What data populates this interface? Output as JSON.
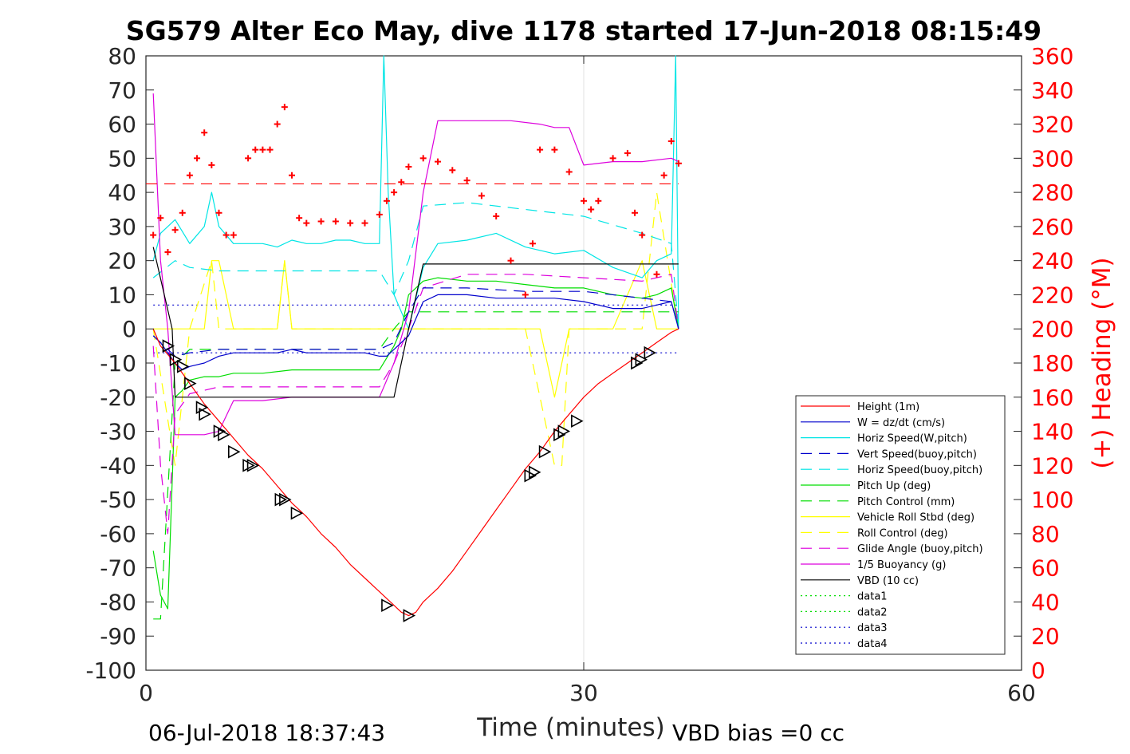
{
  "chart_data": {
    "type": "line",
    "title": "SG579 Alter Eco May, dive 1178 started 17-Jun-2018 08:15:49",
    "xlabel": "Time (minutes)",
    "ylabel_right": "(+) Heading (°M)",
    "footer_left": "06-Jul-2018 18:37:43",
    "footer_right": "VBD bias =0 cc",
    "xlim": [
      0,
      60
    ],
    "ylim": [
      -100,
      80
    ],
    "ylim_right": [
      0,
      360
    ],
    "x_ticks": [
      0,
      30,
      60
    ],
    "x_tick_labels": [
      "0",
      "30",
      "60"
    ],
    "y_ticks": [
      80,
      70,
      60,
      50,
      40,
      30,
      20,
      10,
      0,
      -10,
      -20,
      -30,
      -40,
      -50,
      -60,
      -70,
      -80,
      -90,
      -100
    ],
    "y_tick_labels": [
      "80",
      "70",
      "60",
      "50",
      "40",
      "30",
      "20",
      "10",
      "0",
      "-10",
      "-20",
      "-30",
      "-40",
      "-50",
      "-60",
      "-70",
      "-80",
      "-90",
      "-100"
    ],
    "y_right_ticks": [
      360,
      340,
      320,
      300,
      280,
      260,
      240,
      220,
      200,
      180,
      160,
      140,
      120,
      100,
      80,
      60,
      40,
      20,
      0
    ],
    "y_right_tick_labels": [
      "360",
      "340",
      "320",
      "300",
      "280",
      "260",
      "240",
      "220",
      "200",
      "180",
      "160",
      "140",
      "120",
      "100",
      "80",
      "60",
      "40",
      "20",
      "0"
    ],
    "grid_x": [
      30
    ],
    "legend_position": "bottom-right",
    "legend": [
      {
        "label": "Height (1m)",
        "color": "#ff0000",
        "dash": "solid"
      },
      {
        "label": "W = dz/dt (cm/s)",
        "color": "#0000cc",
        "dash": "solid"
      },
      {
        "label": "Horiz Speed(W,pitch)",
        "color": "#00e5e5",
        "dash": "solid"
      },
      {
        "label": "Vert Speed(buoy,pitch)",
        "color": "#0000cc",
        "dash": "dashed"
      },
      {
        "label": "Horiz Speed(buoy,pitch)",
        "color": "#00e5e5",
        "dash": "dashed"
      },
      {
        "label": "Pitch Up (deg)",
        "color": "#00dd00",
        "dash": "solid"
      },
      {
        "label": "Pitch Control (mm)",
        "color": "#00dd00",
        "dash": "dashed"
      },
      {
        "label": "Vehicle Roll Stbd (deg)",
        "color": "#ffff00",
        "dash": "solid"
      },
      {
        "label": "Roll Control (deg)",
        "color": "#ffff00",
        "dash": "dashed"
      },
      {
        "label": "Glide Angle (buoy,pitch)",
        "color": "#dd00dd",
        "dash": "dashed"
      },
      {
        "label": "1/5 Buoyancy (g)",
        "color": "#dd00dd",
        "dash": "solid"
      },
      {
        "label": "VBD (10 cc)",
        "color": "#000000",
        "dash": "solid"
      },
      {
        "label": "data1",
        "color": "#00dd00",
        "dash": "dotted"
      },
      {
        "label": "data2",
        "color": "#00dd00",
        "dash": "dotted"
      },
      {
        "label": "data3",
        "color": "#0000cc",
        "dash": "dotted"
      },
      {
        "label": "data4",
        "color": "#0000cc",
        "dash": "dotted"
      }
    ],
    "series": [
      {
        "key": "height",
        "x": [
          0.5,
          1,
          2,
          3,
          4,
          5,
          6,
          7,
          8,
          9,
          10,
          11,
          12,
          13,
          14,
          15,
          16,
          17,
          17.5,
          18,
          18.5,
          19,
          20,
          21,
          22,
          23,
          24,
          25,
          26,
          27,
          28,
          29,
          30,
          31,
          32,
          33,
          34,
          35,
          36,
          36.5
        ],
        "y": [
          0,
          -5,
          -10,
          -16,
          -22,
          -27,
          -32,
          -37,
          -41,
          -46,
          -51,
          -55,
          -60,
          -64,
          -69,
          -73,
          -77,
          -81,
          -83,
          -84,
          -83,
          -80,
          -76,
          -71,
          -65,
          -59,
          -53,
          -47,
          -41,
          -36,
          -30,
          -25,
          -20,
          -16,
          -13,
          -10,
          -7,
          -4,
          -1,
          0
        ]
      },
      {
        "key": "w",
        "x": [
          0.5,
          1,
          1.5,
          2,
          2.5,
          3,
          4,
          5,
          6,
          7,
          8,
          9,
          10,
          11,
          12,
          13,
          14,
          15,
          16,
          16.5,
          17,
          18,
          18.5,
          19,
          20,
          22,
          24,
          26,
          28,
          30,
          32,
          34,
          35,
          36,
          36.5
        ],
        "y": [
          -2,
          -4,
          -7,
          -10,
          -12,
          -11,
          -10,
          -8,
          -7,
          -7,
          -7,
          -7,
          -6,
          -7,
          -7,
          -7,
          -7,
          -7,
          -8,
          -8,
          -6,
          -2,
          3,
          8,
          10,
          10,
          9,
          9,
          9,
          8,
          6,
          6,
          7,
          8,
          0
        ]
      },
      {
        "key": "horiz_w",
        "x": [
          0.5,
          1,
          2,
          3,
          4,
          4.5,
          5,
          6,
          7,
          8,
          9,
          10,
          11,
          12,
          13,
          14,
          15,
          16,
          16.3,
          16.6,
          17,
          18,
          19,
          20,
          22,
          24,
          26,
          28,
          30,
          32,
          34,
          35,
          36,
          36.3,
          36.5
        ],
        "y": [
          20,
          28,
          32,
          25,
          30,
          40,
          30,
          25,
          25,
          25,
          24,
          26,
          25,
          25,
          26,
          26,
          25,
          25,
          80,
          40,
          10,
          0,
          18,
          25,
          26,
          28,
          24,
          22,
          23,
          18,
          15,
          20,
          22,
          80,
          0
        ]
      },
      {
        "key": "vert_buoy",
        "x": [
          0.5,
          2,
          3,
          5,
          8,
          12,
          16,
          17,
          18,
          19,
          22,
          26,
          30,
          34,
          36,
          36.5
        ],
        "y": [
          -2,
          -8,
          -7,
          -6,
          -6,
          -6,
          -6,
          -4,
          5,
          12,
          12,
          11,
          11,
          9,
          8,
          0
        ]
      },
      {
        "key": "horiz_buoy",
        "x": [
          0.5,
          2,
          3,
          5,
          8,
          12,
          16,
          17,
          18,
          19,
          22,
          26,
          30,
          34,
          36,
          36.5
        ],
        "y": [
          15,
          20,
          18,
          17,
          17,
          17,
          17,
          10,
          20,
          36,
          37,
          35,
          33,
          28,
          25,
          0
        ]
      },
      {
        "key": "pitch_up",
        "x": [
          0.5,
          1,
          1.5,
          2,
          2.5,
          3,
          4,
          5,
          6,
          7,
          8,
          10,
          12,
          14,
          16,
          17,
          17.5,
          18,
          19,
          20,
          22,
          24,
          26,
          28,
          30,
          32,
          34,
          35,
          36,
          36.5
        ],
        "y": [
          -65,
          -78,
          -82,
          -20,
          -18,
          -15,
          -14,
          -14,
          -13,
          -13,
          -13,
          -12,
          -12,
          -12,
          -12,
          -5,
          0,
          10,
          14,
          15,
          14,
          14,
          13,
          12,
          12,
          10,
          9,
          10,
          12,
          0
        ]
      },
      {
        "key": "pitch_control",
        "x": [
          0.5,
          1,
          2,
          3,
          5,
          10,
          16,
          17,
          18,
          20,
          25,
          30,
          35,
          36.5
        ],
        "y": [
          -85,
          -85,
          -10,
          -6,
          -6,
          -6,
          -6,
          0,
          5,
          5,
          5,
          5,
          5,
          5
        ]
      },
      {
        "key": "vehicle_roll",
        "x": [
          0.5,
          1,
          2,
          3,
          4,
          4.5,
          5,
          6,
          7,
          9,
          9.5,
          10,
          12,
          14,
          16,
          17,
          18,
          19,
          22,
          26,
          27,
          28,
          29,
          30,
          32,
          34,
          35,
          36,
          36.5
        ],
        "y": [
          0,
          0,
          0,
          0,
          0,
          20,
          20,
          0,
          0,
          0,
          20,
          0,
          0,
          0,
          0,
          0,
          0,
          0,
          0,
          0,
          0,
          -20,
          0,
          0,
          0,
          20,
          0,
          0,
          0
        ]
      },
      {
        "key": "roll_control",
        "x": [
          0.5,
          2,
          3,
          4.5,
          5,
          6,
          7,
          9,
          9.5,
          10,
          16,
          18,
          26,
          28,
          28.5,
          29,
          30,
          34,
          35,
          36.5
        ],
        "y": [
          0,
          -40,
          0,
          20,
          0,
          0,
          0,
          0,
          20,
          0,
          0,
          0,
          0,
          -40,
          -40,
          0,
          0,
          0,
          40,
          0
        ]
      },
      {
        "key": "glide_angle",
        "x": [
          0.5,
          1,
          1.5,
          2,
          3,
          4,
          5,
          6,
          8,
          10,
          12,
          14,
          16,
          17,
          18,
          19,
          22,
          26,
          30,
          34,
          36,
          36.5
        ],
        "y": [
          -5,
          -40,
          -60,
          -25,
          -19,
          -18,
          -17,
          -17,
          -17,
          -17,
          -17,
          -17,
          -17,
          -10,
          0,
          12,
          16,
          16,
          15,
          14,
          16,
          0
        ]
      },
      {
        "key": "buoyancy",
        "x": [
          0.5,
          1,
          1.5,
          2,
          3,
          4,
          5,
          6,
          8,
          10,
          12,
          14,
          16,
          17,
          18,
          19,
          20,
          25,
          27,
          28,
          29,
          30,
          32,
          34,
          36,
          36.5
        ],
        "y": [
          69,
          20,
          0,
          -31,
          -31,
          -31,
          -30,
          -21,
          -21,
          -20,
          -20,
          -20,
          -20,
          -10,
          5,
          40,
          61,
          61,
          60,
          59,
          59,
          48,
          49,
          49,
          50,
          49
        ]
      },
      {
        "key": "vbd",
        "x": [
          0.5,
          1.8,
          2,
          16,
          17,
          18,
          19,
          20,
          22,
          25,
          30,
          34,
          36.5
        ],
        "y": [
          24,
          0,
          -20,
          -20,
          -20,
          0,
          19,
          19,
          19,
          19,
          19,
          19,
          19
        ]
      },
      {
        "key": "data3_dotted",
        "x": [
          0.5,
          36.5
        ],
        "y": [
          7,
          7
        ]
      },
      {
        "key": "data4_dotted",
        "x": [
          0.5,
          36.5
        ],
        "y": [
          -7,
          -7
        ]
      }
    ],
    "heading_ref_deg": 285,
    "heading_series": {
      "x": [
        0.5,
        1,
        1.5,
        2,
        2.5,
        3,
        3.5,
        4,
        4.5,
        5,
        5.5,
        6,
        7,
        7.5,
        8,
        8.5,
        9,
        9.5,
        10,
        10.5,
        11,
        12,
        13,
        14,
        15,
        16,
        16.5,
        17,
        17.5,
        18,
        19,
        20,
        21,
        22,
        23,
        24,
        25,
        26,
        26.5,
        27,
        28,
        29,
        30,
        30.5,
        31,
        32,
        33,
        33.5,
        34,
        35,
        35.5,
        36,
        36.5
      ],
      "y": [
        255,
        265,
        245,
        258,
        268,
        290,
        300,
        315,
        296,
        268,
        255,
        255,
        300,
        305,
        305,
        305,
        320,
        330,
        290,
        265,
        262,
        263,
        263,
        262,
        262,
        267,
        275,
        280,
        286,
        295,
        300,
        298,
        293,
        287,
        278,
        266,
        240,
        220,
        250,
        305,
        305,
        292,
        275,
        270,
        275,
        300,
        303,
        268,
        255,
        232,
        290,
        310,
        297
      ]
    },
    "markers": {
      "x": [
        1.5,
        2,
        2.5,
        3,
        3.8,
        4,
        5,
        5.3,
        6,
        7,
        7.3,
        9.2,
        9.5,
        10.3,
        16.5,
        18,
        26.3,
        26.6,
        27.3,
        28.3,
        28.6,
        29.5,
        33.6,
        33.9,
        34.5
      ],
      "y": [
        -5,
        -9,
        -11,
        -16,
        -23,
        -25,
        -30,
        -31,
        -36,
        -40,
        -40,
        -50,
        -50,
        -54,
        -81,
        -84,
        -43,
        -42,
        -36,
        -31,
        -30,
        -27,
        -10,
        -9,
        -7
      ]
    }
  }
}
